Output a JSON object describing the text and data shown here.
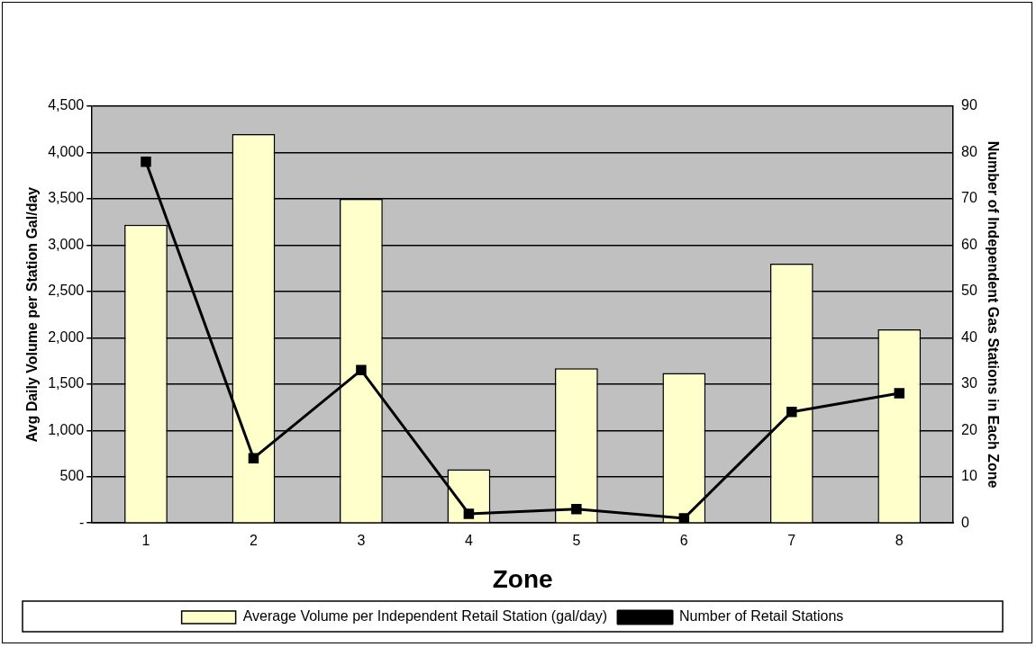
{
  "chart_data": {
    "type": "bar",
    "xlabel": "Zone",
    "ylabel": "Avg Daily Volume per Station Gal/day",
    "y2label": "Number of Independent Gas Stations in Each Zone",
    "categories": [
      "1",
      "2",
      "3",
      "4",
      "5",
      "6",
      "7",
      "8"
    ],
    "series": [
      {
        "name": "Average Volume per Independent Retail Station (gal/day)",
        "color": "#ffffcc",
        "values": [
          3220,
          4200,
          3500,
          580,
          1670,
          1620,
          2800,
          2090
        ]
      },
      {
        "name": "Number of Retail Stations",
        "type": "line",
        "axis": "y2",
        "color": "#000000",
        "values": [
          78,
          14,
          33,
          2,
          3,
          1,
          24,
          28
        ]
      }
    ],
    "ylim": [
      0,
      4500
    ],
    "yticks": [
      {
        "value": 0,
        "label": "-"
      },
      500,
      {
        "value": 1000,
        "label": "1,000"
      },
      {
        "value": 1500,
        "label": "1,500"
      },
      {
        "value": 2000,
        "label": "2,000"
      },
      {
        "value": 2500,
        "label": "2,500"
      },
      {
        "value": 3000,
        "label": "3,000"
      },
      {
        "value": 3500,
        "label": "3,500"
      },
      {
        "value": 4000,
        "label": "4,000"
      },
      {
        "value": 4500,
        "label": "4,500"
      }
    ],
    "y2lim": [
      0,
      90
    ],
    "y2ticks": [
      0,
      10,
      20,
      30,
      40,
      50,
      60,
      70,
      80,
      90
    ],
    "grid": "y",
    "legend": "bottom",
    "marker": "square"
  }
}
